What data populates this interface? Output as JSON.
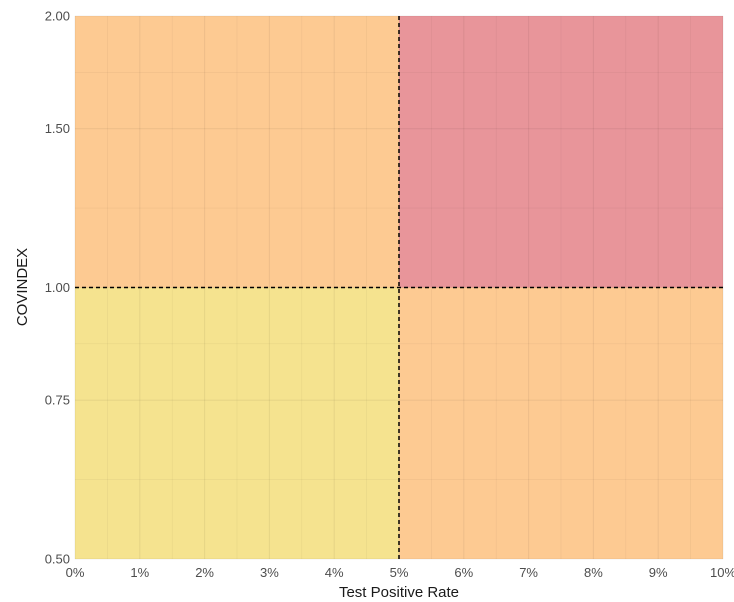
{
  "chart_data": {
    "type": "heatmap",
    "title": "",
    "xlabel": "Test Positive Rate",
    "ylabel": "COVINDEX",
    "xlim": [
      0,
      0.1
    ],
    "ylim": [
      0.5,
      2.0
    ],
    "y_scale": "log",
    "x_ticks": [
      0,
      0.01,
      0.02,
      0.03,
      0.04,
      0.05,
      0.06,
      0.07,
      0.08,
      0.09,
      0.1
    ],
    "x_tick_labels": [
      "0%",
      "1%",
      "2%",
      "3%",
      "4%",
      "5%",
      "6%",
      "7%",
      "8%",
      "9%",
      "10%"
    ],
    "y_ticks": [
      0.5,
      0.75,
      1.0,
      1.5,
      2.0
    ],
    "y_tick_labels": [
      "0.50",
      "0.75",
      "1.00",
      "1.50",
      "2.00"
    ],
    "grid": true,
    "regions": [
      {
        "x": [
          0,
          0.05
        ],
        "y": [
          0.5,
          1.0
        ],
        "color": "#F5E38F"
      },
      {
        "x": [
          0.05,
          0.1
        ],
        "y": [
          0.5,
          1.0
        ],
        "color": "#FDCA92"
      },
      {
        "x": [
          0,
          0.05
        ],
        "y": [
          1.0,
          2.0
        ],
        "color": "#FDCA92"
      },
      {
        "x": [
          0.05,
          0.1
        ],
        "y": [
          1.0,
          2.0
        ],
        "color": "#E8959A"
      }
    ],
    "thresholds": {
      "x": 0.05,
      "y": 1.0
    }
  }
}
